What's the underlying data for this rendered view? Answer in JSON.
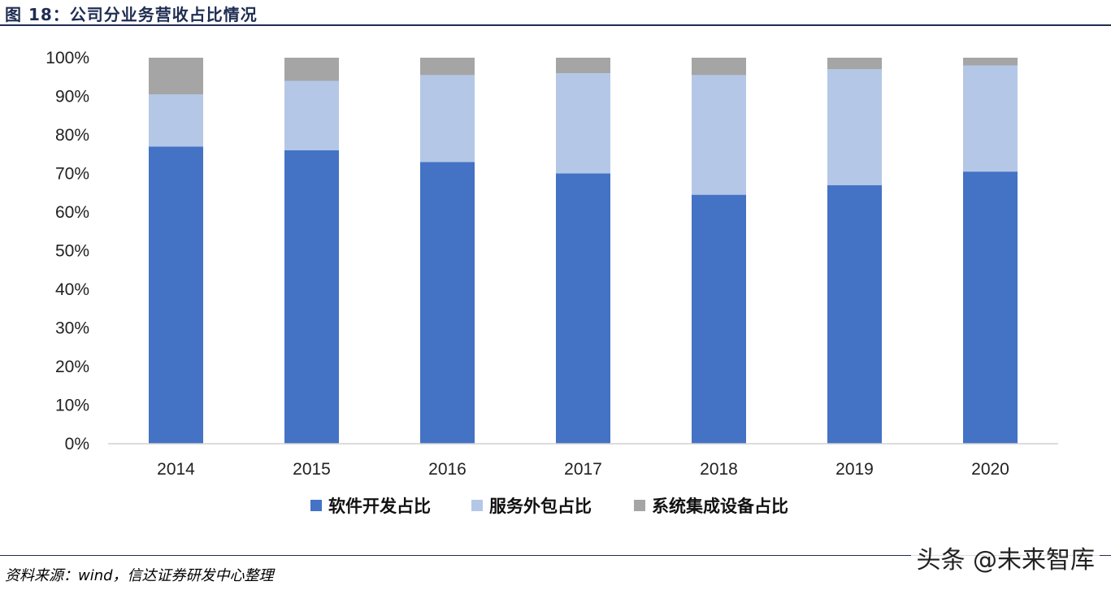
{
  "figure": {
    "title": "图 18：公司分业务营收占比情况",
    "source": "资料来源：wind，信达证券研发中心整理",
    "watermark": "头条 @未来智库"
  },
  "chart_data": {
    "type": "bar",
    "stacked": true,
    "categories": [
      "2014",
      "2015",
      "2016",
      "2017",
      "2018",
      "2019",
      "2020"
    ],
    "series": [
      {
        "name": "软件开发占比",
        "color": "#4472c4",
        "values": [
          77,
          76,
          73,
          70,
          64.5,
          67,
          70.5
        ]
      },
      {
        "name": "服务外包占比",
        "color": "#b4c7e7",
        "values": [
          13.5,
          18,
          22.5,
          26,
          31,
          30,
          27.5
        ]
      },
      {
        "name": "系统集成设备占比",
        "color": "#a5a5a5",
        "values": [
          9.5,
          6,
          4.5,
          4,
          4.5,
          3,
          2
        ]
      }
    ],
    "ylim": [
      0,
      100
    ],
    "yticks": [
      "0%",
      "10%",
      "20%",
      "30%",
      "40%",
      "50%",
      "60%",
      "70%",
      "80%",
      "90%",
      "100%"
    ],
    "legend_position": "bottom",
    "grid": false
  }
}
